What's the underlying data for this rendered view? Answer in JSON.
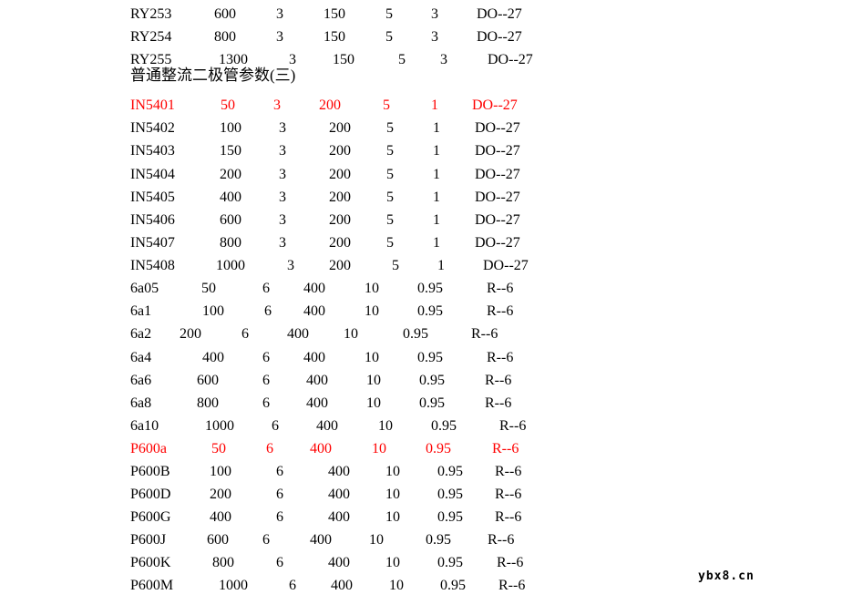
{
  "colors": {
    "background": "#ffffff",
    "text": "#000000",
    "highlight": "#ff0000"
  },
  "watermark": {
    "text": "ybx8.cn"
  },
  "document": {
    "lines": [
      {
        "type": "row",
        "cells": [
          "RY253",
          "600",
          "3",
          "150",
          "5",
          "3",
          "DO--27"
        ],
        "highlight": false
      },
      {
        "type": "row",
        "cells": [
          "RY254",
          "800",
          "3",
          "150",
          "5",
          "3",
          "DO--27"
        ],
        "highlight": false
      },
      {
        "type": "row",
        "cells": [
          "RY255",
          "1300",
          "3",
          "150",
          "5",
          "3",
          "DO--27"
        ],
        "highlight": false
      },
      {
        "type": "heading",
        "text": "普通整流二极管参数(三)"
      },
      {
        "type": "row",
        "cells": [
          "IN5401",
          "50",
          "3",
          "200",
          "5",
          "1",
          "DO--27"
        ],
        "highlight": true
      },
      {
        "type": "row",
        "cells": [
          "IN5402",
          "100",
          "3",
          "200",
          "5",
          "1",
          "DO--27"
        ],
        "highlight": false
      },
      {
        "type": "row",
        "cells": [
          "IN5403",
          "150",
          "3",
          "200",
          "5",
          "1",
          "DO--27"
        ],
        "highlight": false
      },
      {
        "type": "row",
        "cells": [
          "IN5404",
          "200",
          "3",
          "200",
          "5",
          "1",
          "DO--27"
        ],
        "highlight": false
      },
      {
        "type": "row",
        "cells": [
          "IN5405",
          "400",
          "3",
          "200",
          "5",
          "1",
          "DO--27"
        ],
        "highlight": false
      },
      {
        "type": "row",
        "cells": [
          "IN5406",
          "600",
          "3",
          "200",
          "5",
          "1",
          "DO--27"
        ],
        "highlight": false
      },
      {
        "type": "row",
        "cells": [
          "IN5407",
          "800",
          "3",
          "200",
          "5",
          "1",
          "DO--27"
        ],
        "highlight": false
      },
      {
        "type": "row",
        "cells": [
          "IN5408",
          "1000",
          "3",
          "200",
          "5",
          "1",
          "DO--27"
        ],
        "highlight": false
      },
      {
        "type": "row",
        "cells": [
          "6a05",
          "50",
          "6",
          "400",
          "10",
          "0.95",
          "R--6"
        ],
        "highlight": false
      },
      {
        "type": "row",
        "cells": [
          "6a1",
          "100",
          "6",
          "400",
          "10",
          "0.95",
          "R--6"
        ],
        "highlight": false
      },
      {
        "type": "row",
        "cells": [
          "6a2",
          "200",
          "6",
          "400",
          "10",
          "0.95",
          "R--6"
        ],
        "highlight": false
      },
      {
        "type": "row",
        "cells": [
          "6a4",
          "400",
          "6",
          "400",
          "10",
          "0.95",
          "R--6"
        ],
        "highlight": false
      },
      {
        "type": "row",
        "cells": [
          "6a6",
          "600",
          "6",
          "400",
          "10",
          "0.95",
          "R--6"
        ],
        "highlight": false
      },
      {
        "type": "row",
        "cells": [
          "6a8",
          "800",
          "6",
          "400",
          "10",
          "0.95",
          "R--6"
        ],
        "highlight": false
      },
      {
        "type": "row",
        "cells": [
          "6a10",
          "1000",
          "6",
          "400",
          "10",
          "0.95",
          "R--6"
        ],
        "highlight": false
      },
      {
        "type": "row",
        "cells": [
          "P600a",
          "50",
          "6",
          "400",
          "10",
          "0.95",
          "R--6"
        ],
        "highlight": true
      },
      {
        "type": "row",
        "cells": [
          "P600B",
          "100",
          "6",
          "400",
          "10",
          "0.95",
          "R--6"
        ],
        "highlight": false
      },
      {
        "type": "row",
        "cells": [
          "P600D",
          "200",
          "6",
          "400",
          "10",
          "0.95",
          "R--6"
        ],
        "highlight": false
      },
      {
        "type": "row",
        "cells": [
          "P600G",
          "400",
          "6",
          "400",
          "10",
          "0.95",
          "R--6"
        ],
        "highlight": false
      },
      {
        "type": "row",
        "cells": [
          "P600J",
          "600",
          "6",
          "400",
          "10",
          "0.95",
          "R--6"
        ],
        "highlight": false
      },
      {
        "type": "row",
        "cells": [
          "P600K",
          "800",
          "6",
          "400",
          "10",
          "0.95",
          "R--6"
        ],
        "highlight": false
      },
      {
        "type": "row",
        "cells": [
          "P600M",
          "1000",
          "6",
          "400",
          "10",
          "0.95",
          "R--6"
        ],
        "highlight": false
      }
    ]
  }
}
